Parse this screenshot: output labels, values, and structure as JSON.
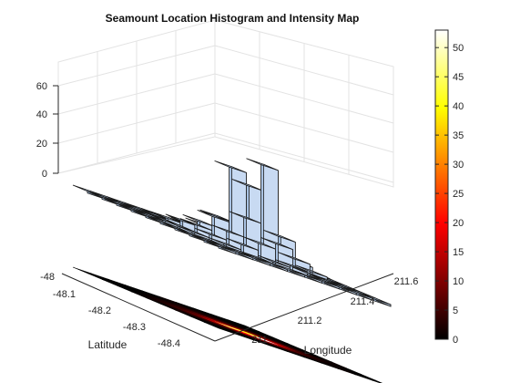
{
  "chart_data": {
    "type": "bar3d_histogram_with_heatmap",
    "title": "Seamount Location Histogram and Intensity Map",
    "xlabel": "Longitude",
    "ylabel": "Latitude",
    "zlabel": "",
    "x_ticks": [
      "211",
      "211.2",
      "211.4",
      "211.6"
    ],
    "y_ticks": [
      "-48",
      "-48.1",
      "-48.2",
      "-48.3",
      "-48.4"
    ],
    "z_ticks": [
      "0",
      "20",
      "40",
      "60"
    ],
    "colorbar_ticks": [
      "0",
      "5",
      "10",
      "15",
      "20",
      "25",
      "30",
      "35",
      "40",
      "45",
      "50"
    ],
    "colorbar_range": [
      0,
      53
    ],
    "colormap": "hot",
    "bar_color": "#bcd3f0",
    "xlim": [
      210.85,
      211.7
    ],
    "ylim": [
      -48.45,
      -47.95
    ],
    "zlim": [
      0,
      60
    ],
    "grid": true,
    "counts": [
      [
        0,
        0,
        0,
        0,
        0,
        0,
        0,
        1,
        0,
        0
      ],
      [
        0,
        0,
        0,
        1,
        2,
        3,
        2,
        1,
        1,
        0
      ],
      [
        0,
        1,
        2,
        5,
        9,
        12,
        7,
        3,
        1,
        0
      ],
      [
        1,
        2,
        4,
        9,
        20,
        53,
        16,
        5,
        2,
        1
      ],
      [
        0,
        2,
        6,
        14,
        45,
        38,
        12,
        6,
        2,
        0
      ],
      [
        1,
        2,
        5,
        8,
        14,
        12,
        8,
        4,
        1,
        0
      ],
      [
        0,
        1,
        3,
        4,
        6,
        5,
        3,
        2,
        1,
        0
      ],
      [
        0,
        0,
        1,
        2,
        3,
        2,
        2,
        1,
        0,
        0
      ],
      [
        0,
        0,
        0,
        1,
        1,
        1,
        1,
        0,
        0,
        0
      ],
      [
        0,
        0,
        0,
        0,
        0,
        1,
        0,
        0,
        0,
        0
      ]
    ]
  }
}
